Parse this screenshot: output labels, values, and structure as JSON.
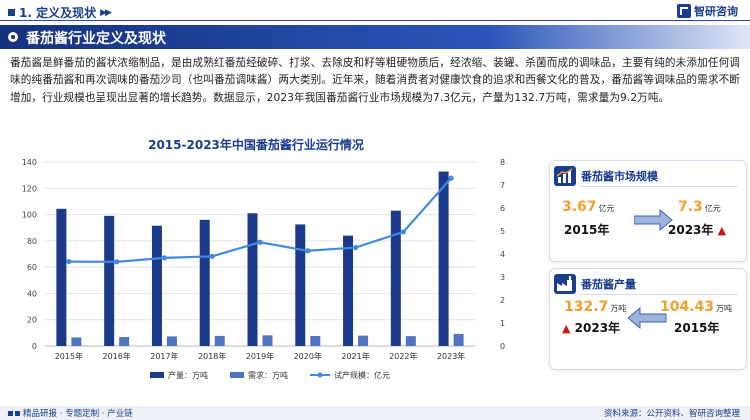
{
  "header": {
    "section_title": "1. 定义及现状",
    "logo_text": "智研咨询"
  },
  "banner": {
    "title": "番茄酱行业定义及现状"
  },
  "paragraph": "番茄酱是鲜番茄的酱状浓缩制品，是由成熟红番茄经破碎、打浆、去除皮和籽等粗硬物质后，经浓缩、装罐、杀菌而成的调味品，主要有纯的未添加任何调味的纯番茄酱和再次调味的番茄沙司（也叫番茄调味酱）两大类别。近年来，随着消费者对健康饮食的追求和西餐文化的普及，番茄酱等调味品的需求不断增加，行业规模也呈现出显著的增长趋势。数据显示，2023年我国番茄酱行业市场规模为7.3亿元，产量为132.7万吨，需求量为9.2万吨。",
  "chart_title": "2015-2023年中国番茄酱行业运行情况",
  "chart_data": {
    "type": "bar",
    "categories": [
      "2015年",
      "2016年",
      "2017年",
      "2018年",
      "2019年",
      "2020年",
      "2021年",
      "2022年",
      "2023年"
    ],
    "series": [
      {
        "name": "产量：万吨",
        "kind": "bar",
        "axis": "left",
        "color": "#1c3a8c",
        "values": [
          104.4,
          99,
          91.5,
          96,
          101,
          92.5,
          84,
          103,
          132.7
        ]
      },
      {
        "name": "需求：万吨",
        "kind": "bar",
        "axis": "left",
        "color": "#4f74c2",
        "values": [
          6.5,
          6.8,
          7.3,
          7.7,
          8.1,
          7.6,
          7.9,
          7.5,
          9.2
        ]
      },
      {
        "name": "试产规模：亿元",
        "kind": "line",
        "axis": "right",
        "color": "#3f8be0",
        "values": [
          3.67,
          3.66,
          3.83,
          3.9,
          4.51,
          4.14,
          4.28,
          4.96,
          7.3
        ]
      }
    ],
    "y_left": {
      "min": 0,
      "max": 140,
      "ticks": [
        0,
        20,
        40,
        60,
        80,
        100,
        120,
        140
      ]
    },
    "y_right": {
      "min": 0,
      "max": 8,
      "ticks": [
        0,
        1,
        2,
        3,
        4,
        5,
        6,
        7,
        8
      ]
    },
    "grid": true,
    "legend_position": "bottom"
  },
  "card_market": {
    "title": "番茄酱市场规模",
    "from_value": "3.67",
    "from_unit": "亿元",
    "from_year": "2015年",
    "to_value": "7.3",
    "to_unit": "亿元",
    "to_year": "2023年"
  },
  "card_output": {
    "title": "番茄酱产量",
    "left_value": "132.7",
    "left_unit": "万吨",
    "left_year": "2023年",
    "right_value": "104.43",
    "right_unit": "万吨",
    "right_year": "2015年"
  },
  "footer": {
    "left": "精品研报 · 专题定制 · 产业链",
    "right": "资料来源：公开资料、智研咨询整理"
  },
  "colors": {
    "brand": "#1a3d8f",
    "accent": "#f0a030",
    "up": "#d0121b"
  }
}
